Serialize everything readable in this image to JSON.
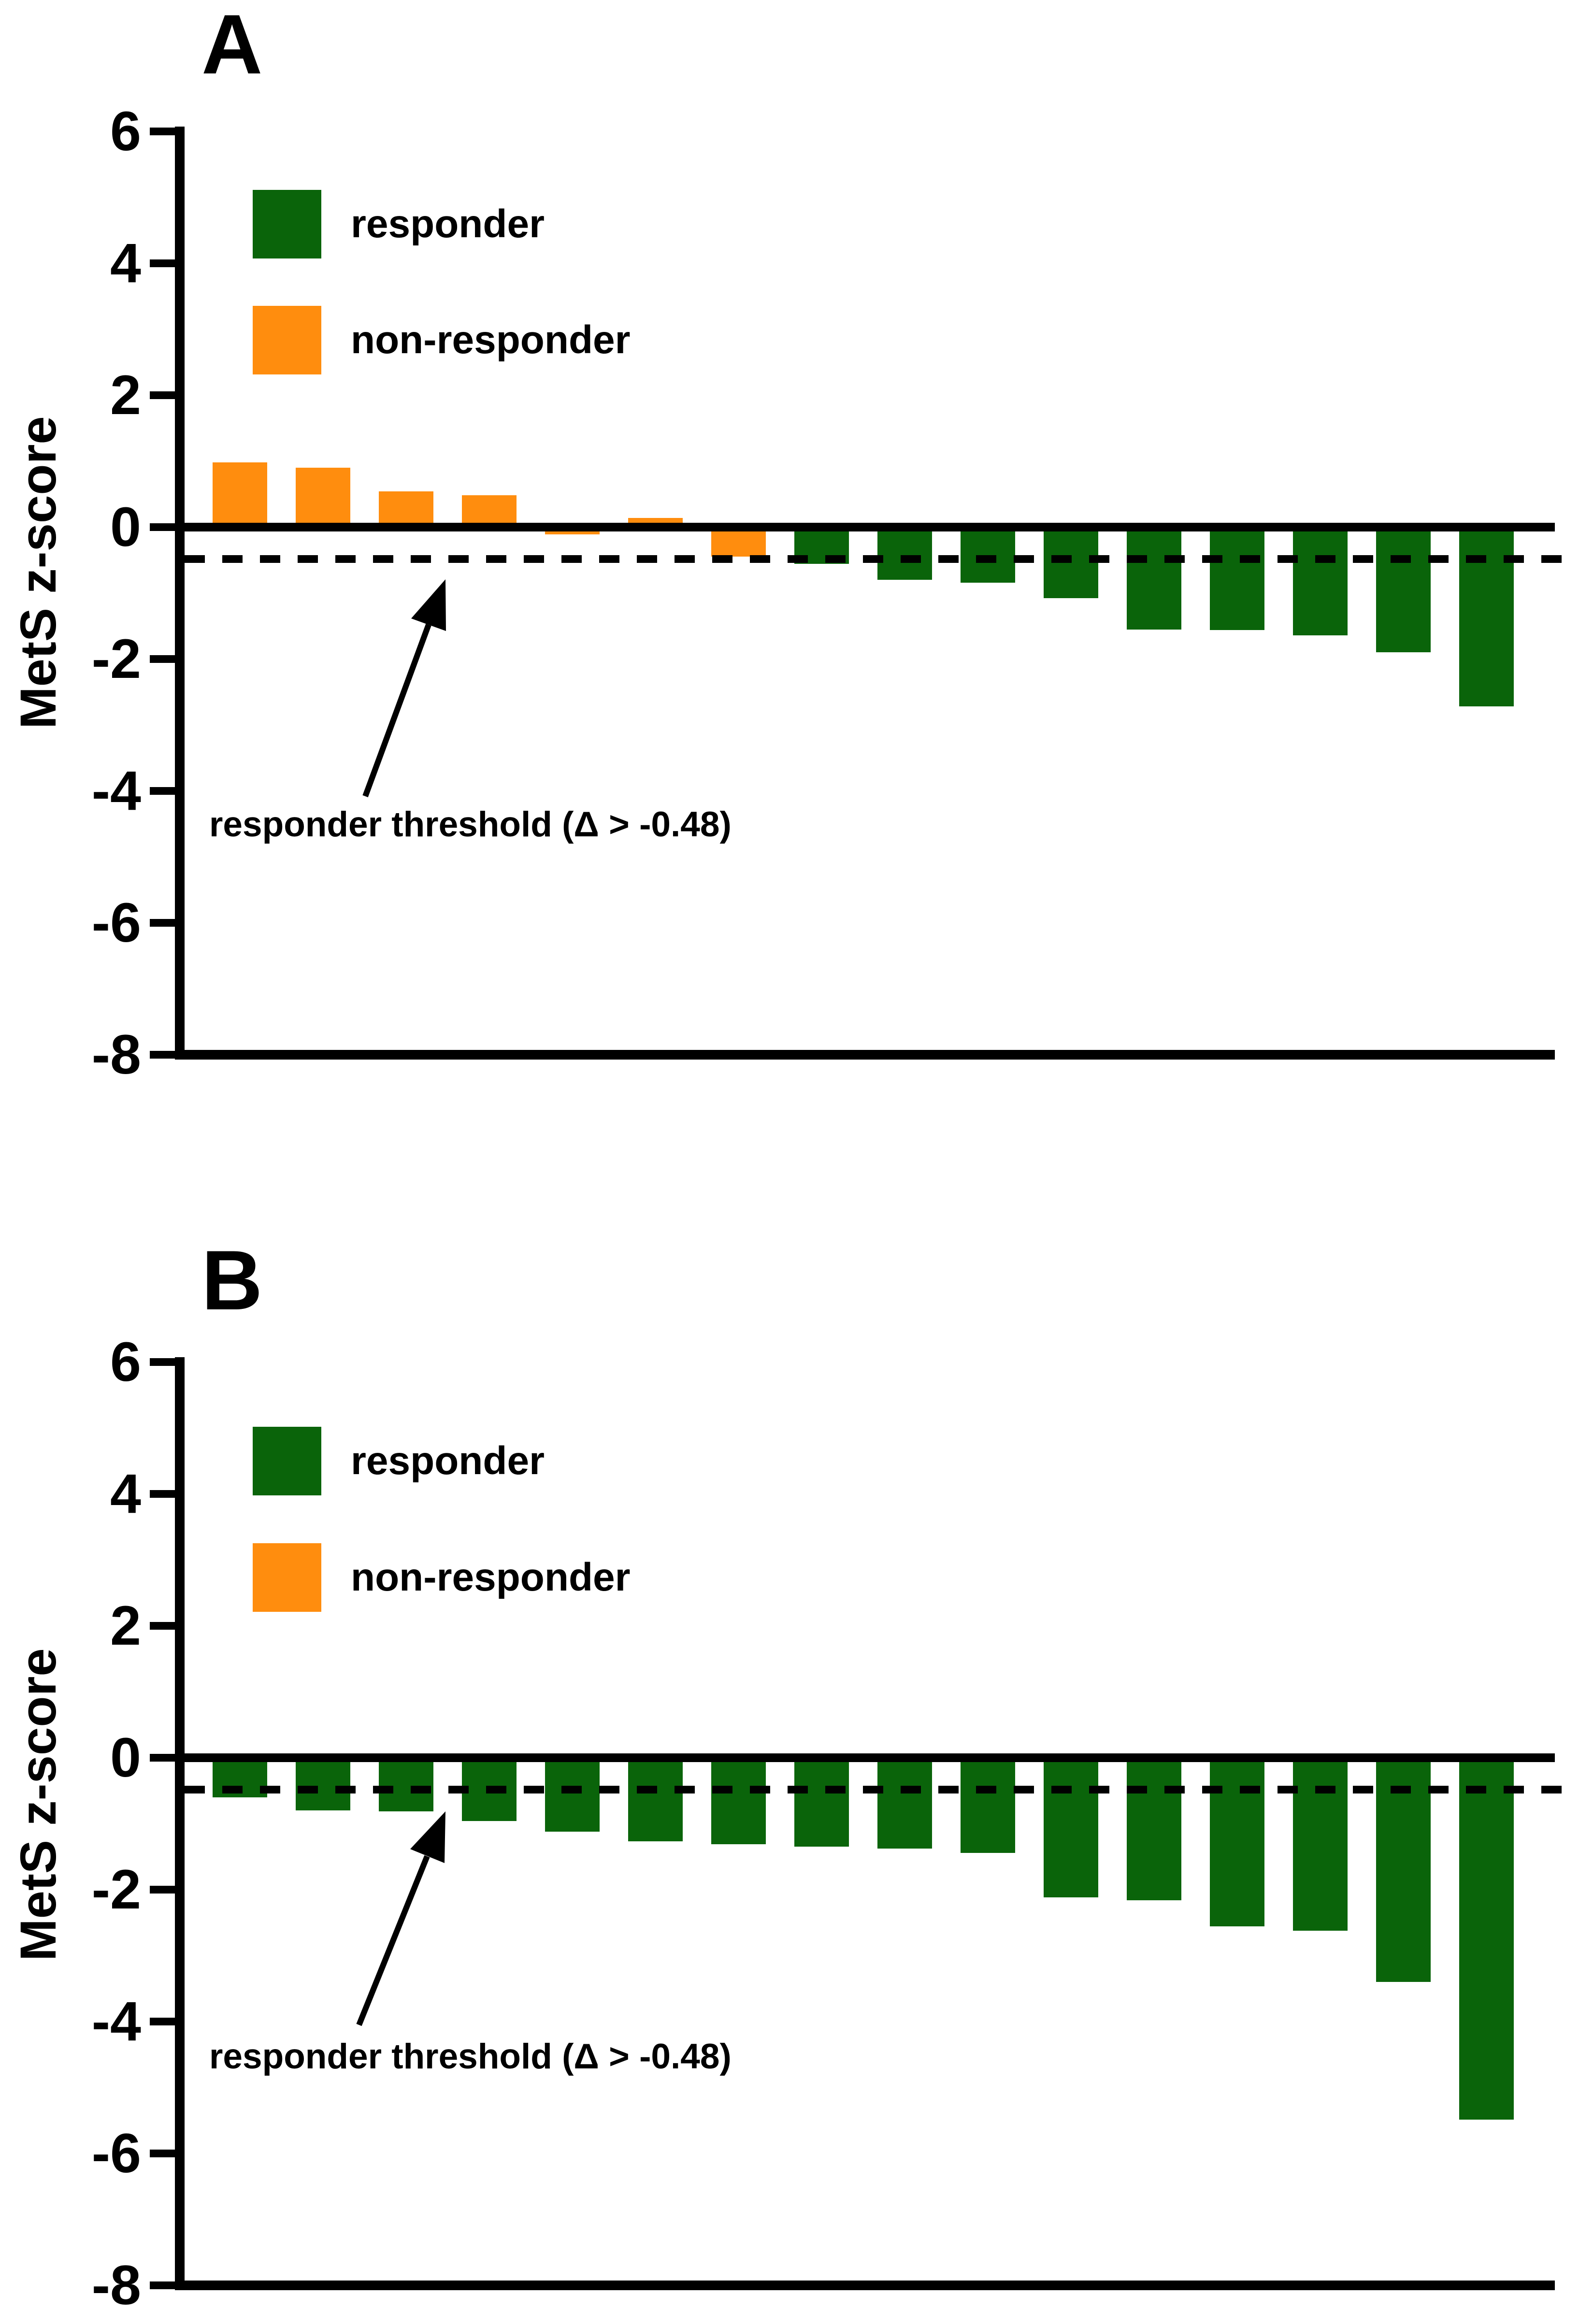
{
  "figure": {
    "description": "Two-panel waterfall bar chart of individual MetS z-score changes",
    "accent_colors": {
      "responder_green": "#0A640A",
      "non_responder_orange": "#FF8D0E",
      "line_black": "#000000"
    }
  },
  "chart_data": [
    {
      "type": "bar",
      "panel_label": "A",
      "ylabel": "MetS z-score",
      "ylim": [
        -8,
        6
      ],
      "yticks": [
        6,
        4,
        2,
        0,
        -2,
        -4,
        -6,
        -8
      ],
      "grid": "off",
      "legend_position": "top-left",
      "legend": [
        {
          "label": "responder",
          "color": "#0A640A"
        },
        {
          "label": "non-responder",
          "color": "#FF8D0E"
        }
      ],
      "threshold_value": -0.48,
      "threshold_line_style": "dashed",
      "threshold_annotation": "responder threshold (Δ > -0.48)",
      "values": [
        0.98,
        0.9,
        0.54,
        0.48,
        -0.11,
        0.14,
        -0.45,
        -0.56,
        -0.8,
        -0.84,
        -1.08,
        -1.55,
        -1.56,
        -1.64,
        -1.9,
        -2.72
      ],
      "bar_groups": [
        "non-responder",
        "non-responder",
        "non-responder",
        "non-responder",
        "non-responder",
        "non-responder",
        "non-responder",
        "responder",
        "responder",
        "responder",
        "responder",
        "responder",
        "responder",
        "responder",
        "responder",
        "responder"
      ]
    },
    {
      "type": "bar",
      "panel_label": "B",
      "ylabel": "MetS z-score",
      "ylim": [
        -8,
        6
      ],
      "yticks": [
        6,
        4,
        2,
        0,
        -2,
        -4,
        -6,
        -8
      ],
      "grid": "off",
      "legend_position": "top-left",
      "legend": [
        {
          "label": "responder",
          "color": "#0A640A"
        },
        {
          "label": "non-responder",
          "color": "#FF8D0E"
        }
      ],
      "threshold_value": -0.48,
      "threshold_line_style": "dashed",
      "threshold_annotation": "responder threshold (Δ > -0.48)",
      "values": [
        -0.6,
        -0.8,
        -0.81,
        -0.96,
        -1.12,
        -1.27,
        -1.31,
        -1.35,
        -1.38,
        -1.44,
        -2.12,
        -2.16,
        -2.56,
        -2.62,
        -3.4,
        -5.49
      ],
      "bar_groups": [
        "responder",
        "responder",
        "responder",
        "responder",
        "responder",
        "responder",
        "responder",
        "responder",
        "responder",
        "responder",
        "responder",
        "responder",
        "responder",
        "responder",
        "responder",
        "responder"
      ]
    }
  ]
}
